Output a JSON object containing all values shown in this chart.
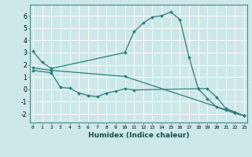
{
  "line1_x": [
    0,
    1,
    2,
    10,
    11,
    12,
    13,
    14,
    15,
    16,
    17,
    18,
    19,
    20,
    21,
    22,
    23
  ],
  "line1_y": [
    3.1,
    2.2,
    1.7,
    3.0,
    4.7,
    5.4,
    5.9,
    6.0,
    6.3,
    5.7,
    2.6,
    0.05,
    0.05,
    -0.65,
    -1.55,
    -1.85,
    -2.15
  ],
  "line2_x": [
    0,
    2,
    10,
    23
  ],
  "line2_y": [
    1.75,
    1.55,
    1.05,
    -2.15
  ],
  "line3_x": [
    0,
    2,
    3,
    4,
    5,
    6,
    7,
    8,
    9,
    10,
    11,
    18,
    19,
    20,
    21,
    22,
    23
  ],
  "line3_y": [
    1.55,
    1.35,
    0.15,
    0.1,
    -0.3,
    -0.5,
    -0.6,
    -0.3,
    -0.15,
    0.05,
    -0.05,
    0.05,
    -0.75,
    -1.45,
    -1.7,
    -1.95,
    -2.15
  ],
  "line_color": "#2e7d7a",
  "bg_color": "#cce8e8",
  "grid_color": "#b8d8d8",
  "xlabel": "Humidex (Indice chaleur)",
  "yticks": [
    -2,
    -1,
    0,
    1,
    2,
    3,
    4,
    5,
    6
  ],
  "xticks": [
    0,
    1,
    2,
    3,
    4,
    5,
    6,
    7,
    8,
    9,
    10,
    11,
    12,
    13,
    14,
    15,
    16,
    17,
    18,
    19,
    20,
    21,
    22,
    23
  ],
  "xlim": [
    -0.3,
    23.3
  ],
  "ylim": [
    -2.7,
    6.9
  ]
}
